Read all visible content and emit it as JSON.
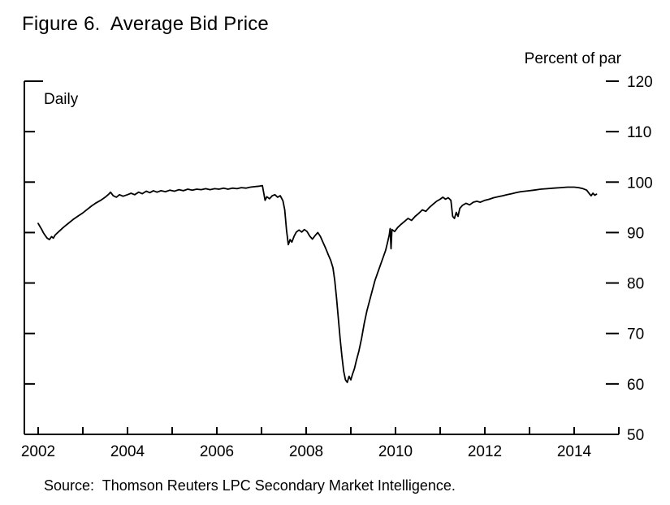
{
  "colors": {
    "line": "#000000",
    "axis": "#000000",
    "background": "#ffffff"
  },
  "chart_data": {
    "type": "line",
    "title": "Figure 6.  Average Bid Price",
    "frequency_label": "Daily",
    "unit_label": "Percent of par",
    "source": "Source:  Thomson Reuters LPC Secondary Market Intelligence.",
    "x_axis": {
      "range": [
        2001.7,
        2015.0
      ],
      "major_ticks": [
        2002,
        2004,
        2006,
        2008,
        2010,
        2012,
        2014
      ],
      "minor_ticks": [
        2002,
        2003,
        2004,
        2005,
        2006,
        2007,
        2008,
        2009,
        2010,
        2011,
        2012,
        2013,
        2014,
        2015
      ]
    },
    "y_axis": {
      "range": [
        50,
        120
      ],
      "ticks": [
        120,
        110,
        100,
        90,
        80,
        70,
        60,
        50
      ],
      "label": "Percent of par"
    },
    "grid": false,
    "legend": "none",
    "series": [
      {
        "name": "Average bid price (percent of par)",
        "points": [
          [
            2002.0,
            91.8
          ],
          [
            2002.04,
            91.2
          ],
          [
            2002.08,
            90.6
          ],
          [
            2002.12,
            89.9
          ],
          [
            2002.16,
            89.4
          ],
          [
            2002.2,
            88.9
          ],
          [
            2002.25,
            88.6
          ],
          [
            2002.3,
            89.2
          ],
          [
            2002.34,
            88.9
          ],
          [
            2002.38,
            89.5
          ],
          [
            2002.45,
            90.1
          ],
          [
            2002.5,
            90.5
          ],
          [
            2002.55,
            90.9
          ],
          [
            2002.6,
            91.3
          ],
          [
            2002.7,
            92.0
          ],
          [
            2002.8,
            92.7
          ],
          [
            2002.9,
            93.3
          ],
          [
            2003.0,
            93.9
          ],
          [
            2003.1,
            94.6
          ],
          [
            2003.2,
            95.3
          ],
          [
            2003.3,
            95.9
          ],
          [
            2003.4,
            96.4
          ],
          [
            2003.5,
            97.0
          ],
          [
            2003.58,
            97.6
          ],
          [
            2003.62,
            98.0
          ],
          [
            2003.68,
            97.3
          ],
          [
            2003.75,
            97.0
          ],
          [
            2003.82,
            97.5
          ],
          [
            2003.9,
            97.2
          ],
          [
            2004.0,
            97.5
          ],
          [
            2004.08,
            97.8
          ],
          [
            2004.16,
            97.5
          ],
          [
            2004.25,
            98.0
          ],
          [
            2004.33,
            97.7
          ],
          [
            2004.42,
            98.2
          ],
          [
            2004.5,
            97.9
          ],
          [
            2004.58,
            98.3
          ],
          [
            2004.66,
            98.0
          ],
          [
            2004.75,
            98.3
          ],
          [
            2004.85,
            98.1
          ],
          [
            2004.95,
            98.4
          ],
          [
            2005.05,
            98.2
          ],
          [
            2005.15,
            98.5
          ],
          [
            2005.25,
            98.3
          ],
          [
            2005.35,
            98.6
          ],
          [
            2005.45,
            98.4
          ],
          [
            2005.55,
            98.6
          ],
          [
            2005.65,
            98.5
          ],
          [
            2005.75,
            98.7
          ],
          [
            2005.85,
            98.5
          ],
          [
            2005.95,
            98.7
          ],
          [
            2006.05,
            98.6
          ],
          [
            2006.15,
            98.8
          ],
          [
            2006.25,
            98.6
          ],
          [
            2006.35,
            98.8
          ],
          [
            2006.45,
            98.7
          ],
          [
            2006.55,
            98.9
          ],
          [
            2006.65,
            98.8
          ],
          [
            2006.75,
            99.0
          ],
          [
            2006.85,
            99.1
          ],
          [
            2006.95,
            99.2
          ],
          [
            2007.02,
            99.3
          ],
          [
            2007.08,
            96.4
          ],
          [
            2007.12,
            97.1
          ],
          [
            2007.18,
            96.7
          ],
          [
            2007.24,
            97.3
          ],
          [
            2007.3,
            97.5
          ],
          [
            2007.36,
            97.0
          ],
          [
            2007.42,
            97.3
          ],
          [
            2007.48,
            96.3
          ],
          [
            2007.52,
            94.5
          ],
          [
            2007.56,
            90.5
          ],
          [
            2007.6,
            87.6
          ],
          [
            2007.64,
            88.6
          ],
          [
            2007.68,
            88.1
          ],
          [
            2007.73,
            89.3
          ],
          [
            2007.78,
            90.1
          ],
          [
            2007.84,
            90.5
          ],
          [
            2007.9,
            90.1
          ],
          [
            2007.96,
            90.6
          ],
          [
            2008.02,
            90.2
          ],
          [
            2008.08,
            89.3
          ],
          [
            2008.14,
            88.7
          ],
          [
            2008.2,
            89.4
          ],
          [
            2008.26,
            90.0
          ],
          [
            2008.32,
            89.2
          ],
          [
            2008.38,
            88.0
          ],
          [
            2008.44,
            86.8
          ],
          [
            2008.5,
            85.5
          ],
          [
            2008.55,
            84.5
          ],
          [
            2008.6,
            83.0
          ],
          [
            2008.64,
            80.5
          ],
          [
            2008.68,
            77.0
          ],
          [
            2008.72,
            73.0
          ],
          [
            2008.76,
            69.0
          ],
          [
            2008.8,
            65.5
          ],
          [
            2008.84,
            62.5
          ],
          [
            2008.88,
            60.8
          ],
          [
            2008.92,
            60.3
          ],
          [
            2008.96,
            61.5
          ],
          [
            2009.0,
            60.8
          ],
          [
            2009.04,
            62.0
          ],
          [
            2009.08,
            63.0
          ],
          [
            2009.12,
            64.5
          ],
          [
            2009.18,
            66.5
          ],
          [
            2009.24,
            69.0
          ],
          [
            2009.3,
            72.0
          ],
          [
            2009.36,
            74.5
          ],
          [
            2009.42,
            76.5
          ],
          [
            2009.48,
            78.5
          ],
          [
            2009.54,
            80.5
          ],
          [
            2009.6,
            82.0
          ],
          [
            2009.66,
            83.5
          ],
          [
            2009.72,
            85.0
          ],
          [
            2009.78,
            86.5
          ],
          [
            2009.82,
            88.0
          ],
          [
            2009.86,
            89.5
          ],
          [
            2009.88,
            90.8
          ],
          [
            2009.9,
            86.8
          ],
          [
            2009.92,
            90.6
          ],
          [
            2009.98,
            90.2
          ],
          [
            2010.05,
            91.0
          ],
          [
            2010.12,
            91.6
          ],
          [
            2010.2,
            92.2
          ],
          [
            2010.28,
            92.8
          ],
          [
            2010.36,
            92.4
          ],
          [
            2010.44,
            93.2
          ],
          [
            2010.52,
            93.8
          ],
          [
            2010.6,
            94.5
          ],
          [
            2010.68,
            94.2
          ],
          [
            2010.76,
            95.0
          ],
          [
            2010.84,
            95.6
          ],
          [
            2010.92,
            96.2
          ],
          [
            2011.0,
            96.6
          ],
          [
            2011.06,
            97.0
          ],
          [
            2011.12,
            96.6
          ],
          [
            2011.18,
            96.9
          ],
          [
            2011.24,
            96.4
          ],
          [
            2011.28,
            93.2
          ],
          [
            2011.32,
            92.8
          ],
          [
            2011.36,
            94.0
          ],
          [
            2011.4,
            93.2
          ],
          [
            2011.44,
            94.8
          ],
          [
            2011.5,
            95.4
          ],
          [
            2011.58,
            95.8
          ],
          [
            2011.66,
            95.5
          ],
          [
            2011.74,
            96.0
          ],
          [
            2011.82,
            96.2
          ],
          [
            2011.9,
            96.0
          ],
          [
            2012.0,
            96.4
          ],
          [
            2012.1,
            96.6
          ],
          [
            2012.2,
            96.9
          ],
          [
            2012.3,
            97.1
          ],
          [
            2012.4,
            97.3
          ],
          [
            2012.5,
            97.5
          ],
          [
            2012.6,
            97.7
          ],
          [
            2012.7,
            97.9
          ],
          [
            2012.8,
            98.1
          ],
          [
            2012.9,
            98.2
          ],
          [
            2013.0,
            98.3
          ],
          [
            2013.1,
            98.4
          ],
          [
            2013.25,
            98.6
          ],
          [
            2013.4,
            98.7
          ],
          [
            2013.55,
            98.8
          ],
          [
            2013.7,
            98.9
          ],
          [
            2013.85,
            99.0
          ],
          [
            2014.0,
            99.0
          ],
          [
            2014.1,
            98.9
          ],
          [
            2014.2,
            98.7
          ],
          [
            2014.28,
            98.4
          ],
          [
            2014.34,
            97.7
          ],
          [
            2014.38,
            97.3
          ],
          [
            2014.42,
            97.8
          ],
          [
            2014.46,
            97.4
          ],
          [
            2014.5,
            97.6
          ]
        ]
      }
    ]
  }
}
